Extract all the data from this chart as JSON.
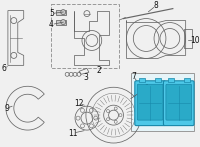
{
  "bg_color": "#f0f0f0",
  "part_line_color": "#666666",
  "label_color": "#111111",
  "label_fontsize": 5.5,
  "brake_pad_color": "#4dc8e8",
  "brake_pad_mid": "#2aaac8",
  "brake_pad_dark": "#1888aa",
  "box_fill": "#e6f4f8",
  "box_edge": "#999999",
  "dashed_fill": "#f0f0f0",
  "dashed_edge": "#999999"
}
